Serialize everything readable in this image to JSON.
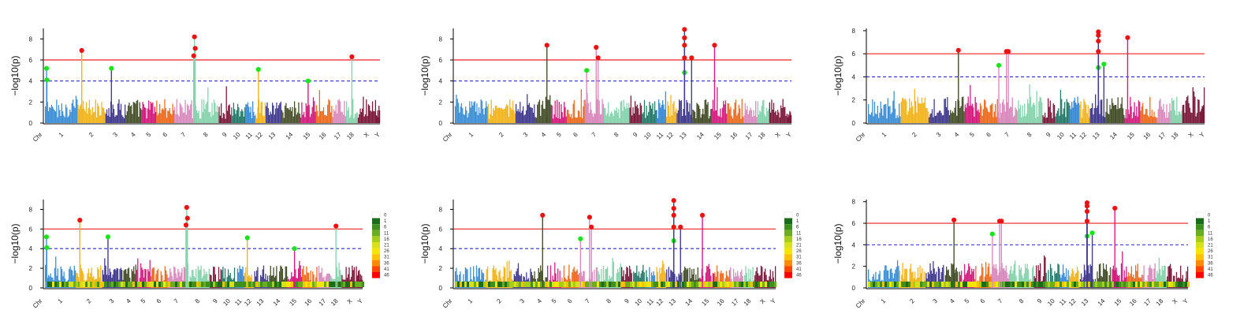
{
  "y_axis_label": "−log10(p)",
  "palette": [
    "#3d8fd6",
    "#f2b41c",
    "#433c8f",
    "#45502a",
    "#d31c7e",
    "#ec6c20",
    "#d98abd",
    "#86d3ad",
    "#7d1a3c",
    "#257a6a",
    "#3b8bd6",
    "#f2b41c",
    "#433c8f",
    "#45502a",
    "#d31c7e",
    "#ec6c20",
    "#d98abd",
    "#86d3ad",
    "#7d1a3c",
    "#7d1a3c"
  ],
  "density_legend": {
    "labels": [
      "0",
      "1",
      "6",
      "11",
      "16",
      "21",
      "26",
      "31",
      "36",
      "41",
      "46"
    ],
    "colors": [
      "#ffffff",
      "#1a6b1a",
      "#3f8f1f",
      "#6aad1f",
      "#a8cc1a",
      "#d8e01a",
      "#f4e600",
      "#ffc000",
      "#ff8a00",
      "#ff4500",
      "#ff0000"
    ]
  },
  "chart_data": [
    {
      "type": "scatter",
      "subtype": "manhattan",
      "ylabel": "−log10(p)",
      "ylim": [
        0,
        9
      ],
      "yticks": [
        0,
        2,
        4,
        6,
        8
      ],
      "thresholds": {
        "significant": 6,
        "suggestive": 4
      },
      "categories": [
        "Chr",
        "1",
        "2",
        "3",
        "4",
        "5",
        "6",
        "7",
        "8",
        "9",
        "10",
        "11",
        "12",
        "13",
        "14",
        "15",
        "16",
        "17",
        "18",
        "X",
        "Y"
      ],
      "chromosome_sizes": [
        1.0,
        0.85,
        0.62,
        0.48,
        0.46,
        0.55,
        0.58,
        0.78,
        0.38,
        0.44,
        0.3,
        0.32,
        0.48,
        0.58,
        0.48,
        0.5,
        0.42,
        0.36,
        0.56,
        0.12
      ],
      "hits_significant": [
        [
          2,
          0.15,
          6.9
        ],
        [
          8,
          0.05,
          8.2
        ],
        [
          8,
          0.08,
          7.1
        ],
        [
          8,
          0.02,
          6.4
        ],
        [
          18,
          0.5,
          6.3
        ]
      ],
      "hits_suggestive": [
        [
          1,
          0.05,
          5.2
        ],
        [
          1,
          0.06,
          4.1
        ],
        [
          3,
          0.3,
          5.2
        ],
        [
          12,
          0.3,
          5.1
        ],
        [
          15,
          0.5,
          4.0
        ]
      ],
      "density_strip": false
    },
    {
      "type": "scatter",
      "subtype": "manhattan",
      "ylabel": "−log10(p)",
      "ylim": [
        0,
        9
      ],
      "yticks": [
        0,
        2,
        4,
        6,
        8
      ],
      "thresholds": {
        "significant": 6,
        "suggestive": 4
      },
      "categories": [
        "Chr",
        "1",
        "2",
        "3",
        "4",
        "5",
        "6",
        "7",
        "8",
        "9",
        "10",
        "11",
        "12",
        "13",
        "14",
        "15",
        "16",
        "17",
        "18",
        "X",
        "Y"
      ],
      "chromosome_sizes": [
        1.0,
        0.85,
        0.62,
        0.48,
        0.46,
        0.55,
        0.58,
        0.78,
        0.38,
        0.44,
        0.3,
        0.32,
        0.48,
        0.58,
        0.48,
        0.5,
        0.42,
        0.36,
        0.56,
        0.12
      ],
      "hits_significant": [
        [
          4,
          0.7,
          7.4
        ],
        [
          7,
          0.6,
          7.2
        ],
        [
          7,
          0.7,
          6.2
        ],
        [
          13,
          0.5,
          8.9
        ],
        [
          13,
          0.5,
          8.1
        ],
        [
          13,
          0.5,
          7.4
        ],
        [
          13,
          0.5,
          6.2
        ],
        [
          13,
          0.95,
          6.2
        ],
        [
          15,
          0.2,
          7.4
        ]
      ],
      "hits_suggestive": [
        [
          7,
          0.1,
          5.0
        ],
        [
          13,
          0.5,
          4.8
        ]
      ],
      "density_strip": false
    },
    {
      "type": "scatter",
      "subtype": "manhattan",
      "ylabel": "−log10(p)",
      "ylim": [
        0,
        8.2
      ],
      "yticks": [
        0,
        2,
        4,
        6,
        8
      ],
      "thresholds": {
        "significant": 6,
        "suggestive": 4
      },
      "categories": [
        "Chr",
        "1",
        "2",
        "3",
        "4",
        "5",
        "6",
        "7",
        "8",
        "9",
        "10",
        "11",
        "12",
        "13",
        "14",
        "15",
        "16",
        "17",
        "18",
        "X",
        "Y"
      ],
      "chromosome_sizes": [
        1.0,
        0.85,
        0.62,
        0.48,
        0.46,
        0.55,
        0.58,
        0.78,
        0.38,
        0.44,
        0.3,
        0.32,
        0.48,
        0.58,
        0.48,
        0.5,
        0.42,
        0.36,
        0.56,
        0.12
      ],
      "hits_significant": [
        [
          4,
          0.6,
          6.3
        ],
        [
          7,
          0.45,
          6.2
        ],
        [
          7,
          0.55,
          6.2
        ],
        [
          13,
          0.55,
          7.9
        ],
        [
          13,
          0.55,
          7.6
        ],
        [
          13,
          0.55,
          7.1
        ],
        [
          13,
          0.55,
          6.2
        ],
        [
          15,
          0.2,
          7.4
        ]
      ],
      "hits_suggestive": [
        [
          7,
          0.05,
          5.0
        ],
        [
          13,
          0.55,
          4.8
        ],
        [
          13,
          0.9,
          5.1
        ]
      ],
      "density_strip": false
    },
    {
      "type": "scatter",
      "subtype": "manhattan",
      "ylabel": "−log10(p)",
      "ylim": [
        0,
        9
      ],
      "yticks": [
        0,
        2,
        4,
        6,
        8
      ],
      "thresholds": {
        "significant": 6,
        "suggestive": 4
      },
      "categories": [
        "Chr",
        "1",
        "2",
        "3",
        "4",
        "5",
        "6",
        "7",
        "8",
        "9",
        "10",
        "11",
        "12",
        "13",
        "14",
        "15",
        "16",
        "17",
        "18",
        "X",
        "Y"
      ],
      "chromosome_sizes": [
        1.0,
        0.85,
        0.62,
        0.48,
        0.46,
        0.55,
        0.58,
        0.78,
        0.38,
        0.44,
        0.3,
        0.32,
        0.48,
        0.58,
        0.48,
        0.5,
        0.42,
        0.36,
        0.56,
        0.12
      ],
      "hits_significant": [
        [
          2,
          0.15,
          6.9
        ],
        [
          8,
          0.05,
          8.2
        ],
        [
          8,
          0.08,
          7.1
        ],
        [
          8,
          0.02,
          6.4
        ],
        [
          18,
          0.5,
          6.3
        ]
      ],
      "hits_suggestive": [
        [
          1,
          0.05,
          5.2
        ],
        [
          1,
          0.06,
          4.1
        ],
        [
          3,
          0.3,
          5.2
        ],
        [
          12,
          0.3,
          5.1
        ],
        [
          15,
          0.5,
          4.0
        ]
      ],
      "density_strip": true
    },
    {
      "type": "scatter",
      "subtype": "manhattan",
      "ylabel": "−log10(p)",
      "ylim": [
        0,
        9
      ],
      "yticks": [
        0,
        2,
        4,
        6,
        8
      ],
      "thresholds": {
        "significant": 6,
        "suggestive": 4
      },
      "categories": [
        "Chr",
        "1",
        "2",
        "3",
        "4",
        "5",
        "6",
        "7",
        "8",
        "9",
        "10",
        "11",
        "12",
        "13",
        "14",
        "15",
        "16",
        "17",
        "18",
        "X",
        "Y"
      ],
      "chromosome_sizes": [
        1.0,
        0.85,
        0.62,
        0.48,
        0.46,
        0.55,
        0.58,
        0.78,
        0.38,
        0.44,
        0.3,
        0.32,
        0.48,
        0.58,
        0.48,
        0.5,
        0.42,
        0.36,
        0.56,
        0.12
      ],
      "hits_significant": [
        [
          4,
          0.7,
          7.4
        ],
        [
          7,
          0.6,
          7.2
        ],
        [
          7,
          0.7,
          6.2
        ],
        [
          13,
          0.5,
          8.9
        ],
        [
          13,
          0.5,
          8.1
        ],
        [
          13,
          0.5,
          7.4
        ],
        [
          13,
          0.5,
          6.2
        ],
        [
          13,
          0.95,
          6.2
        ],
        [
          15,
          0.2,
          7.4
        ]
      ],
      "hits_suggestive": [
        [
          7,
          0.1,
          5.0
        ],
        [
          13,
          0.5,
          4.8
        ]
      ],
      "density_strip": true
    },
    {
      "type": "scatter",
      "subtype": "manhattan",
      "ylabel": "−log10(p)",
      "ylim": [
        0,
        8.2
      ],
      "yticks": [
        0,
        2,
        4,
        6,
        8
      ],
      "thresholds": {
        "significant": 6,
        "suggestive": 4
      },
      "categories": [
        "Chr",
        "1",
        "2",
        "3",
        "4",
        "5",
        "6",
        "7",
        "8",
        "9",
        "10",
        "11",
        "12",
        "13",
        "14",
        "15",
        "16",
        "17",
        "18",
        "X",
        "Y"
      ],
      "chromosome_sizes": [
        1.0,
        0.85,
        0.62,
        0.48,
        0.46,
        0.55,
        0.58,
        0.78,
        0.38,
        0.44,
        0.3,
        0.32,
        0.48,
        0.58,
        0.48,
        0.5,
        0.42,
        0.36,
        0.56,
        0.12
      ],
      "hits_significant": [
        [
          4,
          0.6,
          6.3
        ],
        [
          7,
          0.45,
          6.2
        ],
        [
          7,
          0.55,
          6.2
        ],
        [
          13,
          0.55,
          7.9
        ],
        [
          13,
          0.55,
          7.6
        ],
        [
          13,
          0.55,
          7.1
        ],
        [
          13,
          0.55,
          6.2
        ],
        [
          15,
          0.2,
          7.4
        ]
      ],
      "hits_suggestive": [
        [
          7,
          0.05,
          5.0
        ],
        [
          13,
          0.55,
          4.8
        ],
        [
          13,
          0.9,
          5.1
        ]
      ],
      "density_strip": true
    }
  ]
}
